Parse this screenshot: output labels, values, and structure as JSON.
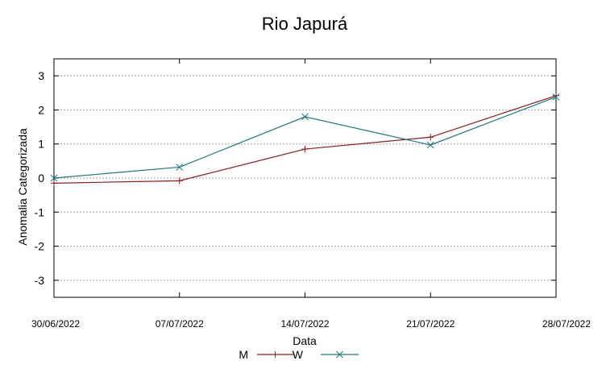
{
  "chart_data": {
    "type": "line",
    "title": "Rio Japurá",
    "xlabel": "Data",
    "ylabel": "Anomalia Categorizada",
    "categories": [
      "30/06/2022",
      "07/07/2022",
      "14/07/2022",
      "21/07/2022",
      "28/07/2022"
    ],
    "yticks": [
      "-3",
      "-2",
      "-1",
      "0",
      "1",
      "2",
      "3"
    ],
    "ylim": [
      -3.5,
      3.5
    ],
    "grid": true,
    "legend_position": "bottom",
    "series": [
      {
        "name": "M",
        "color": "#8b1a1a",
        "marker": "plus",
        "values": [
          -0.15,
          -0.08,
          0.85,
          1.2,
          2.42
        ]
      },
      {
        "name": "W",
        "color": "#1a7a7a",
        "marker": "x",
        "values": [
          0.0,
          0.32,
          1.8,
          0.97,
          2.38
        ]
      }
    ]
  }
}
